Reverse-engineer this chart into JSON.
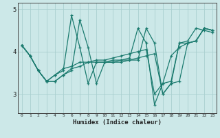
{
  "xlabel": "Humidex (Indice chaleur)",
  "bg_color": "#cce8e8",
  "line_color": "#1a7a6e",
  "grid_color": "#aacfcf",
  "series": [
    [
      4.15,
      3.9,
      3.55,
      3.3,
      3.3,
      3.45,
      3.55,
      4.75,
      4.1,
      3.25,
      3.75,
      3.75,
      3.75,
      3.8,
      3.8,
      4.55,
      4.2,
      3.0,
      3.25,
      3.3,
      4.2,
      4.25,
      4.55,
      4.5
    ],
    [
      4.15,
      3.9,
      3.55,
      3.3,
      3.3,
      3.45,
      3.6,
      3.65,
      3.75,
      3.75,
      3.75,
      3.75,
      3.8,
      3.8,
      3.85,
      3.9,
      3.95,
      3.0,
      3.25,
      4.2,
      4.2,
      4.25,
      4.55,
      4.5
    ],
    [
      4.15,
      3.9,
      3.55,
      3.3,
      3.45,
      3.55,
      4.85,
      4.1,
      3.25,
      3.75,
      3.75,
      3.8,
      3.8,
      3.85,
      4.55,
      4.2,
      2.75,
      3.25,
      3.3,
      4.2,
      4.25,
      4.55,
      4.5,
      4.45
    ],
    [
      4.15,
      3.9,
      3.55,
      3.3,
      3.45,
      3.6,
      3.65,
      3.75,
      3.75,
      3.8,
      3.8,
      3.85,
      3.9,
      3.95,
      4.0,
      4.05,
      3.0,
      3.25,
      3.9,
      4.1,
      4.2,
      4.25,
      4.55,
      4.5
    ]
  ],
  "ylim": [
    2.55,
    5.15
  ],
  "xlim": [
    -0.5,
    23.5
  ],
  "yticks": [
    3,
    4,
    5
  ],
  "xticks": [
    0,
    1,
    2,
    3,
    4,
    5,
    6,
    7,
    8,
    9,
    10,
    11,
    12,
    13,
    14,
    15,
    16,
    17,
    18,
    19,
    20,
    21,
    22,
    23
  ]
}
